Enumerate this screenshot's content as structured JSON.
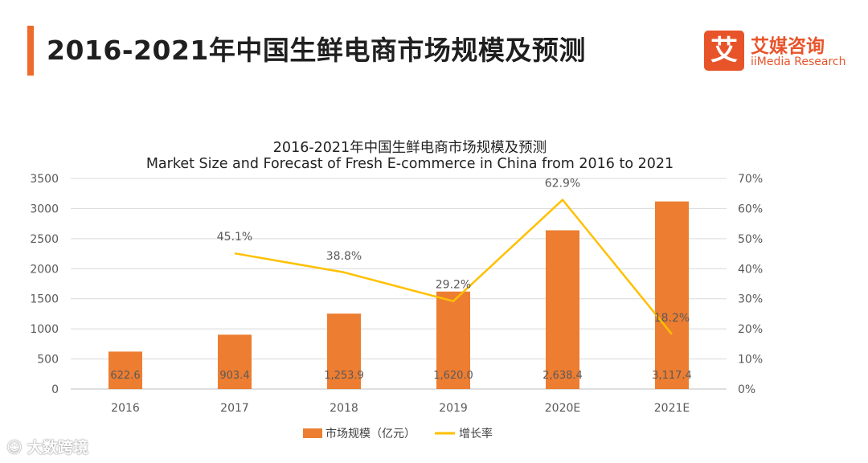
{
  "header": {
    "title": "2016-2021年中国生鲜电商市场规模及预测"
  },
  "logo": {
    "mark": "艾",
    "name_cn": "艾媒咨询",
    "name_en": "iiMedia Research"
  },
  "watermark": {
    "icon": "sina-weibo-icon",
    "text": "大数跨境"
  },
  "colors": {
    "accent": "#EE6A2A",
    "bar": "#ED7D31",
    "line": "#FFC000",
    "logo": "#E8542A",
    "axis_text": "#595959",
    "grid": "#D9D9D9"
  },
  "chart_data": {
    "type": "bar",
    "title": "2016-2021年中国生鲜电商市场规模及预测",
    "subtitle": "Market Size and Forecast of Fresh E-commerce  in China from 2016 to 2021",
    "categories": [
      "2016",
      "2017",
      "2018",
      "2019",
      "2020E",
      "2021E"
    ],
    "series": [
      {
        "name": "市场规模（亿元）",
        "type": "bar",
        "axis": "left",
        "values": [
          622.6,
          903.4,
          1253.9,
          1620.0,
          2638.4,
          3117.4
        ],
        "labels": [
          "622.6",
          "903.4",
          "1,253.9",
          "1,620.0",
          "2,638.4",
          "3,117.4"
        ]
      },
      {
        "name": "增长率",
        "type": "line",
        "axis": "right",
        "values": [
          null,
          45.1,
          38.8,
          29.2,
          62.9,
          18.2
        ],
        "labels": [
          "",
          "45.1%",
          "38.8%",
          "29.2%",
          "62.9%",
          "18.2%"
        ]
      }
    ],
    "y_left": {
      "ylim": [
        0,
        3500
      ],
      "ticks": [
        "0",
        "500",
        "1000",
        "1500",
        "2000",
        "2500",
        "3000",
        "3500"
      ]
    },
    "y_right": {
      "ylim": [
        0,
        70
      ],
      "ticks": [
        "0%",
        "10%",
        "20%",
        "30%",
        "40%",
        "50%",
        "60%",
        "70%"
      ]
    },
    "grid": true,
    "legend": "bottom"
  }
}
